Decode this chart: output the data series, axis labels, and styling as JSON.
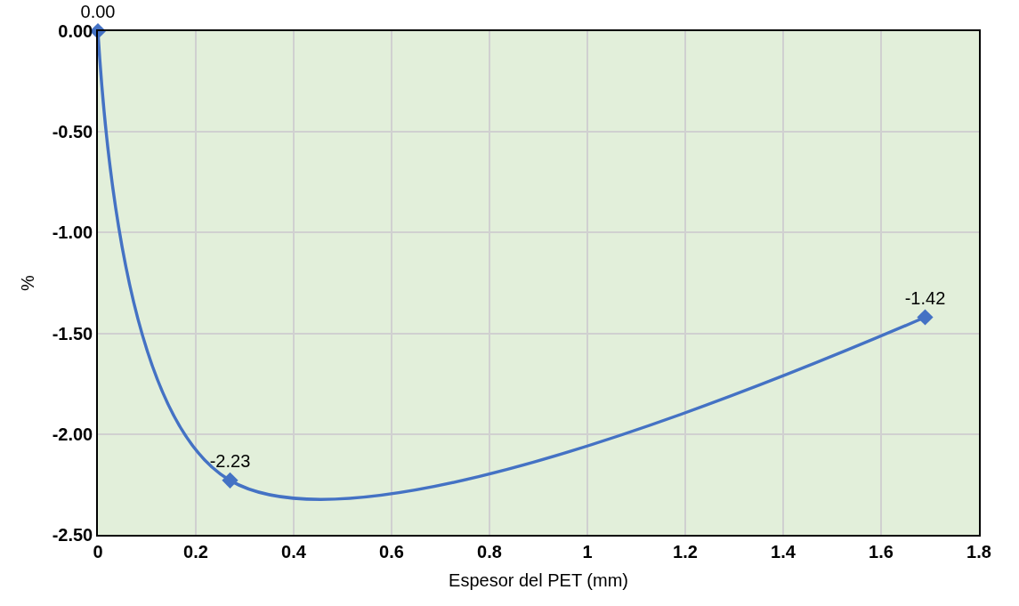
{
  "chart_data": {
    "type": "line",
    "xlabel": "Espesor del PET (mm)",
    "ylabel": "%",
    "x": [
      0,
      0.27,
      1.69
    ],
    "series": [
      {
        "color": "#4472c4",
        "values": [
          0.0,
          -2.23,
          -1.42
        ],
        "value_labels": [
          "0.00",
          "-2.23",
          "-1.42"
        ]
      }
    ],
    "xlim": [
      0,
      1.8
    ],
    "xticks": [
      0,
      0.2,
      0.4,
      0.6,
      0.8,
      1,
      1.2,
      1.4,
      1.6,
      1.8
    ],
    "ylim": [
      -2.5,
      0
    ],
    "yticks": [
      {
        "value": 0,
        "label": "0.00"
      },
      {
        "value": -0.5,
        "label": "-0.50"
      },
      {
        "value": -1,
        "label": "-1.00"
      },
      {
        "value": -1.5,
        "label": "-1.50"
      },
      {
        "value": -2,
        "label": "-2.00"
      },
      {
        "value": -2.5,
        "label": "-2.50"
      }
    ],
    "grid": true,
    "marker": "diamond",
    "line_style": "solid"
  }
}
